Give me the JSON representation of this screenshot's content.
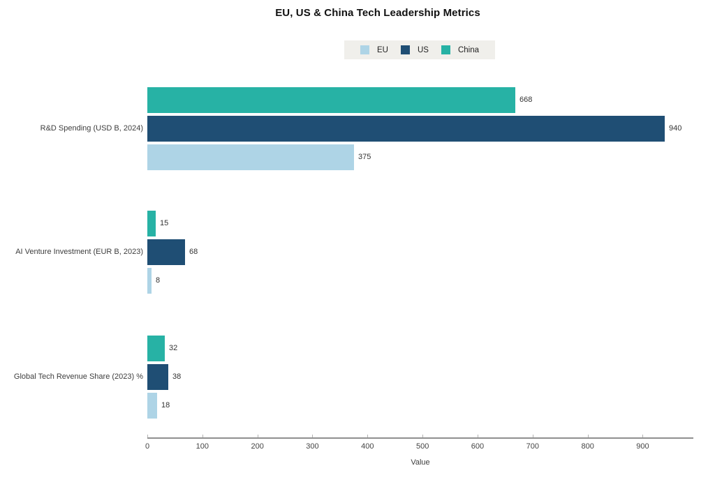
{
  "chart_data": {
    "type": "bar",
    "orientation": "horizontal",
    "title": "EU, US & China Tech Leadership Metrics",
    "xlabel": "Value",
    "categories": [
      "R&D Spending (USD B, 2024)",
      "AI Venture Investment (EUR B, 2023)",
      "Global Tech Revenue Share (2023) %"
    ],
    "series": [
      {
        "name": "EU",
        "color": "#aed4e6",
        "values": [
          375,
          8,
          18
        ]
      },
      {
        "name": "US",
        "color": "#1f4e74",
        "values": [
          940,
          68,
          38
        ]
      },
      {
        "name": "China",
        "color": "#27b2a5",
        "values": [
          668,
          15,
          32
        ]
      }
    ],
    "bar_order_top_to_bottom": [
      "China",
      "US",
      "EU"
    ],
    "xlim": [
      0,
      992
    ],
    "xticks": [
      0,
      100,
      200,
      300,
      400,
      500,
      600,
      700,
      800,
      900
    ],
    "grid": false,
    "legend_position": "top-center",
    "legend_background": "#f0efeb",
    "background_color": "#ffffff",
    "value_labels_shown": true
  }
}
